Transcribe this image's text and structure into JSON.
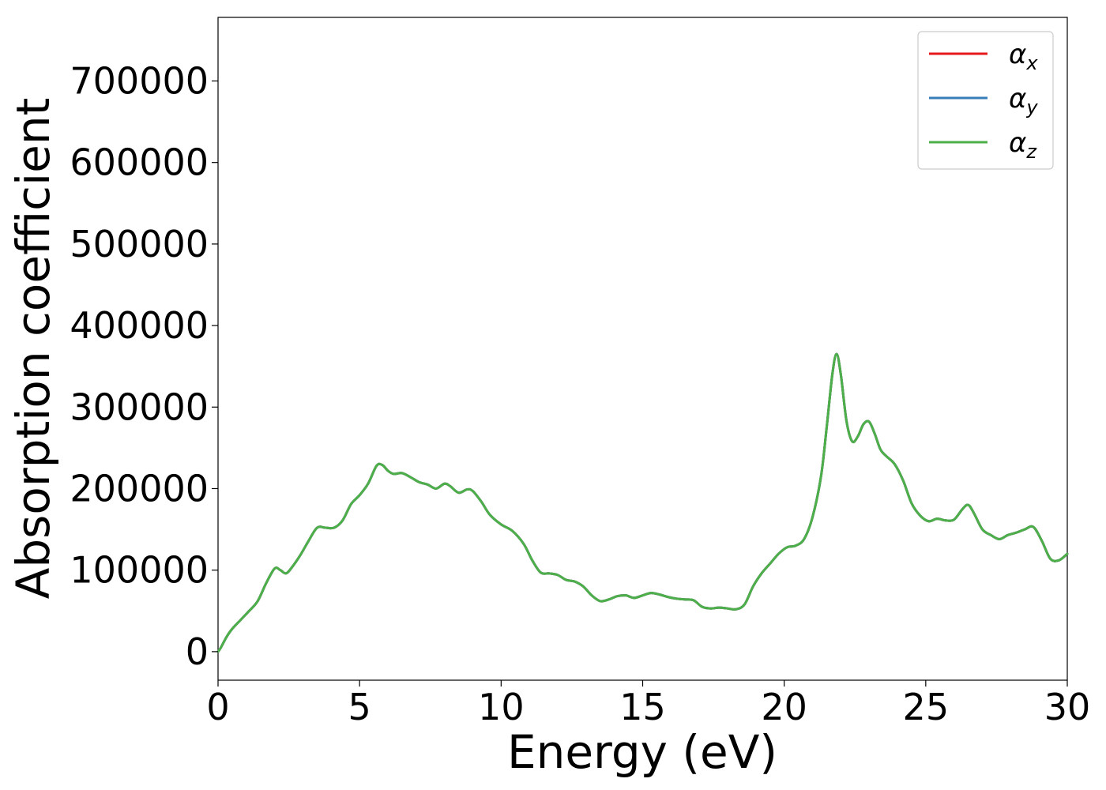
{
  "chart_data": {
    "type": "line",
    "title": "",
    "xlabel": "Energy (eV)",
    "ylabel": "Absorption coefficient",
    "xlim": [
      0,
      30
    ],
    "ylim": [
      -35000,
      778000
    ],
    "xticks": [
      0,
      5,
      10,
      15,
      20,
      25,
      30
    ],
    "xtick_labels": [
      "0",
      "5",
      "10",
      "15",
      "20",
      "25",
      "30"
    ],
    "yticks": [
      0,
      100000,
      200000,
      300000,
      400000,
      500000,
      600000,
      700000
    ],
    "ytick_labels": [
      "0",
      "100000",
      "200000",
      "300000",
      "400000",
      "500000",
      "600000",
      "700000"
    ],
    "grid": false,
    "legend_position": "top-right",
    "x": [
      0,
      0.1,
      0.3,
      0.5,
      0.8,
      1.1,
      1.4,
      1.7,
      2.0,
      2.2,
      2.4,
      2.6,
      2.9,
      3.2,
      3.5,
      3.8,
      4.1,
      4.4,
      4.7,
      5.0,
      5.3,
      5.6,
      5.8,
      6.0,
      6.2,
      6.5,
      6.8,
      7.1,
      7.4,
      7.7,
      8.0,
      8.2,
      8.5,
      8.8,
      9.0,
      9.3,
      9.6,
      10.0,
      10.4,
      10.8,
      11.1,
      11.4,
      11.7,
      12.0,
      12.3,
      12.6,
      12.9,
      13.2,
      13.5,
      13.8,
      14.1,
      14.4,
      14.7,
      15.0,
      15.3,
      15.6,
      15.9,
      16.2,
      16.5,
      16.8,
      17.1,
      17.4,
      17.7,
      18.0,
      18.3,
      18.6,
      18.9,
      19.2,
      19.5,
      19.8,
      20.1,
      20.4,
      20.7,
      21.0,
      21.3,
      21.5,
      21.7,
      21.85,
      22.0,
      22.2,
      22.4,
      22.6,
      22.8,
      23.0,
      23.2,
      23.4,
      23.6,
      23.9,
      24.2,
      24.5,
      24.8,
      25.1,
      25.4,
      25.7,
      26.0,
      26.3,
      26.5,
      26.7,
      27.0,
      27.3,
      27.6,
      27.9,
      28.2,
      28.5,
      28.8,
      29.1,
      29.4,
      29.7,
      30.0
    ],
    "series": [
      {
        "name": "α_x",
        "label_main": "α",
        "label_sub": "x",
        "color": "#e41a1c",
        "values": [
          0,
          5000,
          18000,
          28000,
          39000,
          50000,
          62000,
          84000,
          102000,
          100000,
          96000,
          103000,
          118000,
          136000,
          152000,
          152000,
          152000,
          161000,
          181000,
          192000,
          206000,
          228000,
          229000,
          222000,
          218000,
          219000,
          214000,
          208000,
          205000,
          200000,
          206000,
          203000,
          195000,
          199000,
          197000,
          184000,
          168000,
          156000,
          148000,
          132000,
          112000,
          97000,
          96000,
          94000,
          88000,
          86000,
          80000,
          69000,
          62000,
          64000,
          68000,
          69000,
          66000,
          69000,
          72000,
          70000,
          67000,
          65000,
          64000,
          63000,
          55000,
          53000,
          54000,
          53000,
          52000,
          58000,
          80000,
          96000,
          108000,
          120000,
          128000,
          130000,
          138000,
          165000,
          215000,
          275000,
          340000,
          365000,
          340000,
          283000,
          258000,
          264000,
          279000,
          282000,
          267000,
          248000,
          240000,
          230000,
          210000,
          182000,
          167000,
          160000,
          163000,
          161000,
          162000,
          175000,
          180000,
          170000,
          150000,
          143000,
          138000,
          143000,
          146000,
          150000,
          153000,
          136000,
          114000,
          112000,
          120000
        ]
      },
      {
        "name": "α_y",
        "label_main": "α",
        "label_sub": "y",
        "color": "#377eb8",
        "values": [
          0,
          5000,
          18000,
          28000,
          39000,
          50000,
          62000,
          84000,
          102000,
          100000,
          96000,
          103000,
          118000,
          136000,
          152000,
          152000,
          152000,
          161000,
          181000,
          192000,
          206000,
          228000,
          229000,
          222000,
          218000,
          219000,
          214000,
          208000,
          205000,
          200000,
          206000,
          203000,
          195000,
          199000,
          197000,
          184000,
          168000,
          156000,
          148000,
          132000,
          112000,
          97000,
          96000,
          94000,
          88000,
          86000,
          80000,
          69000,
          62000,
          64000,
          68000,
          69000,
          66000,
          69000,
          72000,
          70000,
          67000,
          65000,
          64000,
          63000,
          55000,
          53000,
          54000,
          53000,
          52000,
          58000,
          80000,
          96000,
          108000,
          120000,
          128000,
          130000,
          138000,
          165000,
          215000,
          275000,
          340000,
          365000,
          340000,
          283000,
          258000,
          264000,
          279000,
          282000,
          267000,
          248000,
          240000,
          230000,
          210000,
          182000,
          167000,
          160000,
          163000,
          161000,
          162000,
          175000,
          180000,
          170000,
          150000,
          143000,
          138000,
          143000,
          146000,
          150000,
          153000,
          136000,
          114000,
          112000,
          120000
        ]
      },
      {
        "name": "α_z",
        "label_main": "α",
        "label_sub": "z",
        "color": "#4daf4a",
        "values": [
          0,
          5000,
          18000,
          28000,
          39000,
          50000,
          62000,
          84000,
          102000,
          100000,
          96000,
          103000,
          118000,
          136000,
          152000,
          152000,
          152000,
          161000,
          181000,
          192000,
          206000,
          228000,
          229000,
          222000,
          218000,
          219000,
          214000,
          208000,
          205000,
          200000,
          206000,
          203000,
          195000,
          199000,
          197000,
          184000,
          168000,
          156000,
          148000,
          132000,
          112000,
          97000,
          96000,
          94000,
          88000,
          86000,
          80000,
          69000,
          62000,
          64000,
          68000,
          69000,
          66000,
          69000,
          72000,
          70000,
          67000,
          65000,
          64000,
          63000,
          55000,
          53000,
          54000,
          53000,
          52000,
          58000,
          80000,
          96000,
          108000,
          120000,
          128000,
          130000,
          138000,
          165000,
          215000,
          275000,
          340000,
          365000,
          340000,
          283000,
          258000,
          264000,
          279000,
          282000,
          267000,
          248000,
          240000,
          230000,
          210000,
          182000,
          167000,
          160000,
          163000,
          161000,
          162000,
          175000,
          180000,
          170000,
          150000,
          143000,
          138000,
          143000,
          146000,
          150000,
          153000,
          136000,
          114000,
          112000,
          120000
        ]
      }
    ]
  }
}
